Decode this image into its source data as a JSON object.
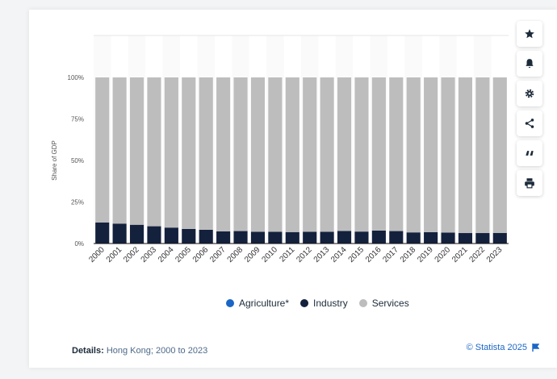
{
  "chart_data": {
    "type": "bar",
    "stacked": true,
    "percent": true,
    "categories": [
      "2000",
      "2001",
      "2002",
      "2003",
      "2004",
      "2005",
      "2006",
      "2007",
      "2008",
      "2009",
      "2010",
      "2011",
      "2012",
      "2013",
      "2014",
      "2015",
      "2016",
      "2017",
      "2018",
      "2019",
      "2020",
      "2021",
      "2022",
      "2023"
    ],
    "series": [
      {
        "name": "Agriculture*",
        "color": "#1a66c7",
        "values": [
          0.1,
          0.1,
          0.1,
          0.1,
          0.1,
          0.1,
          0.1,
          0.1,
          0.1,
          0.1,
          0.1,
          0.1,
          0.1,
          0.1,
          0.1,
          0.1,
          0.1,
          0.1,
          0.1,
          0.1,
          0.1,
          0.1,
          0.1,
          0.1
        ]
      },
      {
        "name": "Industry",
        "color": "#14213d",
        "values": [
          12.6,
          11.9,
          11.2,
          10.3,
          9.5,
          8.7,
          8.2,
          7.2,
          7.4,
          7.0,
          7.0,
          6.8,
          7.0,
          7.0,
          7.5,
          7.1,
          7.7,
          7.4,
          6.6,
          6.7,
          6.5,
          6.2,
          6.2,
          6.3
        ]
      },
      {
        "name": "Services",
        "color": "#bdbdbd",
        "values": [
          87.3,
          88.0,
          88.7,
          89.6,
          90.4,
          91.2,
          91.7,
          92.7,
          92.5,
          92.9,
          92.9,
          93.1,
          92.9,
          92.9,
          92.4,
          92.8,
          92.2,
          92.5,
          93.3,
          93.2,
          93.4,
          93.7,
          93.7,
          93.6
        ]
      }
    ],
    "ylabel": "Share of GDP",
    "xlabel": "",
    "ylim": [
      0,
      100
    ],
    "yticks": [
      "0%",
      "25%",
      "50%",
      "75%",
      "100%"
    ],
    "legend_position": "bottom"
  },
  "details": {
    "label": "Details:",
    "text": "Hong Kong; 2000 to 2023"
  },
  "credit": {
    "text": "© Statista 2025"
  },
  "toolbar": [
    {
      "name": "star-icon"
    },
    {
      "name": "bell-icon"
    },
    {
      "name": "gear-icon"
    },
    {
      "name": "share-icon"
    },
    {
      "name": "quote-icon"
    },
    {
      "name": "print-icon"
    }
  ],
  "colors": {
    "accent": "#1a66c7",
    "industry": "#14213d",
    "services": "#bdbdbd"
  }
}
